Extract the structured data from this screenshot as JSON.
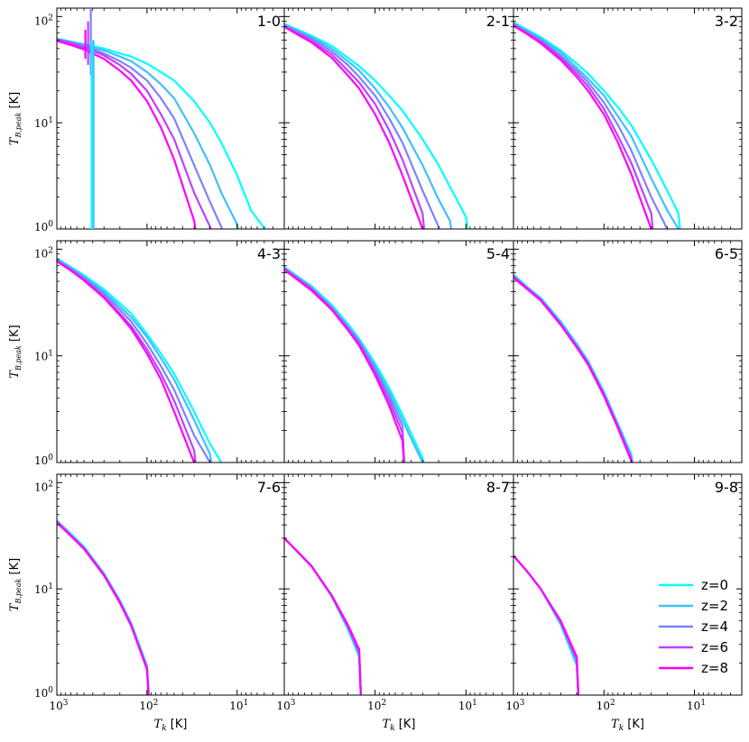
{
  "chart_data": {
    "type": "line",
    "layout": "3x3 grid of panels (shared axes)",
    "xlabel_prefix": "T",
    "xlabel_sub": "k",
    "xlabel_unit": "[K]",
    "ylabel_prefix": "T",
    "ylabel_sub": "B,peak",
    "ylabel_unit": "[K]",
    "x_scale": "log (reversed)",
    "xlim": [
      1000,
      3
    ],
    "x_ticks": [
      {
        "value": 1000,
        "base": "10",
        "exp": "3"
      },
      {
        "value": 100,
        "base": "10",
        "exp": "2"
      },
      {
        "value": 10,
        "base": "10",
        "exp": "1"
      }
    ],
    "y_scale": "log",
    "ylim": [
      1,
      120
    ],
    "y_ticks": [
      {
        "value": 100,
        "base": "10",
        "exp": "2"
      },
      {
        "value": 10,
        "base": "10",
        "exp": "1"
      },
      {
        "value": 1,
        "base": "10",
        "exp": "0"
      }
    ],
    "grid": false,
    "legend_location": "bottom-right of panel 9-8",
    "series_colors": [
      "#00ffff",
      "#40bfff",
      "#8080ff",
      "#bf40ff",
      "#ff00ff"
    ],
    "legend": [
      "z=0",
      "z=2",
      "z=4",
      "z=6",
      "z=8"
    ],
    "panels": [
      {
        "title": "1-0",
        "x": [
          1000,
          700,
          500,
          300,
          200,
          150,
          100,
          70,
          50,
          30,
          20,
          15,
          10,
          7,
          5,
          4
        ],
        "series": [
          {
            "values": [
              62,
              58,
              55,
              50,
              45,
              42,
              36,
              30,
              25,
              16,
              10,
              6.5,
              3.2,
              1.5,
              1.02,
              null
            ]
          },
          {
            "values": [
              62,
              58,
              54,
              48,
              42,
              38,
              30,
              23,
              17,
              8,
              4,
              2.2,
              1.1,
              null,
              null,
              null
            ]
          },
          {
            "values": [
              61,
              57,
              53,
              45,
              38,
              33,
              25,
              17,
              11,
              4,
              1.8,
              1.05,
              null,
              null,
              null,
              null
            ]
          },
          {
            "values": [
              60,
              56,
              51,
              43,
              35,
              29,
              20,
              12,
              7,
              2.2,
              1.05,
              null,
              null,
              null,
              null,
              null
            ]
          },
          {
            "values": [
              59,
              54,
              49,
              40,
              31,
              25,
              16,
              9,
              4.5,
              1.2,
              null,
              null,
              null,
              null,
              null,
              null
            ]
          }
        ]
      },
      {
        "title": "2-1",
        "x": [
          1000,
          700,
          500,
          300,
          200,
          150,
          100,
          70,
          50,
          30,
          20,
          15,
          10,
          7,
          5,
          4
        ],
        "series": [
          {
            "values": [
              85,
              75,
              66,
              53,
              41,
              34,
              25,
              18,
              13,
              7,
              4,
              2.5,
              1.3,
              null,
              null,
              null
            ]
          },
          {
            "values": [
              84,
              73,
              64,
              50,
              38,
              31,
              21,
              14,
              9,
              4,
              1.9,
              1.2,
              null,
              null,
              null,
              null
            ]
          },
          {
            "values": [
              82,
              71,
              62,
              47,
              35,
              27,
              18,
              11,
              6.5,
              2.3,
              1.05,
              null,
              null,
              null,
              null,
              null
            ]
          },
          {
            "values": [
              81,
              69,
              59,
              44,
              31,
              24,
              15,
              8.5,
              4.5,
              1.4,
              null,
              null,
              null,
              null,
              null,
              null
            ]
          },
          {
            "values": [
              80,
              67,
              57,
              41,
              28,
              21,
              12,
              6.5,
              3.2,
              1.0,
              null,
              null,
              null,
              null,
              null,
              null
            ]
          }
        ]
      },
      {
        "title": "3-2",
        "x": [
          1000,
          700,
          500,
          300,
          200,
          150,
          100,
          70,
          50,
          30,
          20,
          15,
          10,
          7,
          5,
          4
        ],
        "series": [
          {
            "values": [
              88,
              75,
              64,
              48,
              36,
              29,
              20,
              14,
              9.5,
              4.5,
              2.3,
              1.4,
              null,
              null,
              null,
              null
            ]
          },
          {
            "values": [
              86,
              73,
              62,
              46,
              33,
              26,
              18,
              11.5,
              7.5,
              3,
              1.5,
              1.0,
              null,
              null,
              null,
              null
            ]
          },
          {
            "values": [
              85,
              71,
              60,
              43,
              31,
              24,
              15.5,
              9.5,
              5.5,
              2,
              1.0,
              null,
              null,
              null,
              null,
              null
            ]
          },
          {
            "values": [
              83,
              69,
              58,
              41,
              29,
              22,
              13.5,
              7.5,
              4.2,
              1.4,
              null,
              null,
              null,
              null,
              null,
              null
            ]
          },
          {
            "values": [
              82,
              68,
              56,
              39,
              27,
              20,
              12,
              6.5,
              3.3,
              1.0,
              null,
              null,
              null,
              null,
              null,
              null
            ]
          }
        ]
      },
      {
        "title": "4-3",
        "x": [
          1000,
          700,
          500,
          300,
          200,
          150,
          100,
          70,
          50,
          30,
          20,
          15,
          10,
          7,
          5,
          4
        ],
        "series": [
          {
            "values": [
              82,
              68,
              57,
              42,
              31,
              25,
              16,
              10.5,
              6.8,
              3,
              1.5,
              1.0,
              null,
              null,
              null,
              null
            ]
          },
          {
            "values": [
              80,
              67,
              55,
              40,
              29,
              23,
              15,
              9.5,
              6,
              2.5,
              1.2,
              null,
              null,
              null,
              null,
              null
            ]
          },
          {
            "values": [
              79,
              65,
              54,
              38,
              27,
              21,
              13,
              8,
              4.8,
              1.8,
              1.0,
              null,
              null,
              null,
              null,
              null
            ]
          },
          {
            "values": [
              78,
              64,
              52,
              36,
              25,
              19,
              11.5,
              6.8,
              3.8,
              1.3,
              null,
              null,
              null,
              null,
              null,
              null
            ]
          },
          {
            "values": [
              77,
              63,
              51,
              35,
              24,
              18,
              10.5,
              6,
              3,
              1.0,
              null,
              null,
              null,
              null,
              null,
              null
            ]
          }
        ]
      },
      {
        "title": "5-4",
        "x": [
          1000,
          700,
          500,
          300,
          200,
          150,
          100,
          70,
          50,
          30,
          20
        ],
        "series": [
          {
            "values": [
              68,
              55,
              45,
              30,
              20,
              14.5,
              8.5,
              5,
              2.8,
              1.1,
              null
            ]
          },
          {
            "values": [
              67,
              54,
              44,
              29,
              19,
              14,
              8,
              4.6,
              2.5,
              1.0,
              null
            ]
          },
          {
            "values": [
              66,
              53,
              43,
              28,
              18.5,
              13.5,
              7.5,
              4.2,
              2.2,
              null,
              null
            ]
          },
          {
            "values": [
              65,
              52,
              42,
              27.5,
              18,
              13,
              7,
              3.8,
              1.9,
              null,
              null
            ]
          },
          {
            "values": [
              64,
              51,
              41,
              27,
              17.5,
              12.5,
              6.6,
              3.4,
              1.6,
              null,
              null
            ]
          }
        ]
      },
      {
        "title": "6-5",
        "x": [
          1000,
          700,
          500,
          300,
          200,
          150,
          100,
          70,
          50,
          40,
          35
        ],
        "series": [
          {
            "values": [
              58,
              44,
              35,
              21,
              13,
              9,
              4.6,
              2.3,
              1.2,
              null,
              null
            ]
          },
          {
            "values": [
              57,
              44,
              34.5,
              20.5,
              12.7,
              8.8,
              4.5,
              2.25,
              1.15,
              null,
              null
            ]
          },
          {
            "values": [
              56,
              43,
              34,
              20,
              12.4,
              8.6,
              4.4,
              2.2,
              1.1,
              null,
              null
            ]
          },
          {
            "values": [
              55,
              42.5,
              33.5,
              19.8,
              12.2,
              8.5,
              4.3,
              2.15,
              1.07,
              null,
              null
            ]
          },
          {
            "values": [
              54,
              42,
              33,
              19.5,
              12,
              8.3,
              4.2,
              2.1,
              1.04,
              null,
              null
            ]
          }
        ]
      },
      {
        "title": "7-6",
        "x": [
          1000,
          700,
          500,
          300,
          200,
          150,
          100,
          70,
          60,
          55
        ],
        "series": [
          {
            "values": [
              44,
              33,
              25,
              14,
              7.8,
              4.8,
              1.9,
              null,
              null,
              null
            ]
          },
          {
            "values": [
              43.5,
              32.5,
              24.5,
              13.8,
              7.7,
              4.7,
              1.85,
              null,
              null,
              null
            ]
          },
          {
            "values": [
              43,
              32,
              24.2,
              13.6,
              7.6,
              4.6,
              1.8,
              null,
              null,
              null
            ]
          },
          {
            "values": [
              42.5,
              31.7,
              24,
              13.5,
              7.5,
              4.55,
              1.78,
              null,
              null,
              null
            ]
          },
          {
            "values": [
              42,
              31.5,
              23.8,
              13.4,
              7.4,
              4.5,
              1.75,
              null,
              null,
              null
            ]
          }
        ]
      },
      {
        "title": "8-7",
        "x": [
          1000,
          700,
          500,
          300,
          200,
          150,
          100
        ],
        "series": [
          {
            "values": [
              30,
              22,
              16.5,
              8.5,
              4.2,
              2.3,
              null
            ]
          },
          {
            "values": [
              30,
              22,
              16.4,
              8.5,
              4.3,
              2.4,
              null
            ]
          },
          {
            "values": [
              30,
              22,
              16.4,
              8.6,
              4.4,
              2.5,
              null
            ]
          },
          {
            "values": [
              30,
              22,
              16.3,
              8.6,
              4.5,
              2.6,
              null
            ]
          },
          {
            "values": [
              30,
              22,
              16.3,
              8.7,
              4.6,
              2.7,
              null
            ]
          }
        ]
      },
      {
        "title": "9-8",
        "x": [
          1000,
          700,
          500,
          300,
          200,
          150
        ],
        "series": [
          {
            "values": [
              20.5,
              14.5,
              10,
              4.6,
              1.9,
              null
            ]
          },
          {
            "values": [
              20.5,
              14.5,
              10,
              4.7,
              2.0,
              null
            ]
          },
          {
            "values": [
              20.5,
              14.5,
              10,
              4.8,
              2.1,
              null
            ]
          },
          {
            "values": [
              20.5,
              14.5,
              10,
              4.9,
              2.2,
              null
            ]
          },
          {
            "values": [
              20.5,
              14.5,
              10,
              5.0,
              2.3,
              null
            ]
          }
        ]
      }
    ]
  }
}
